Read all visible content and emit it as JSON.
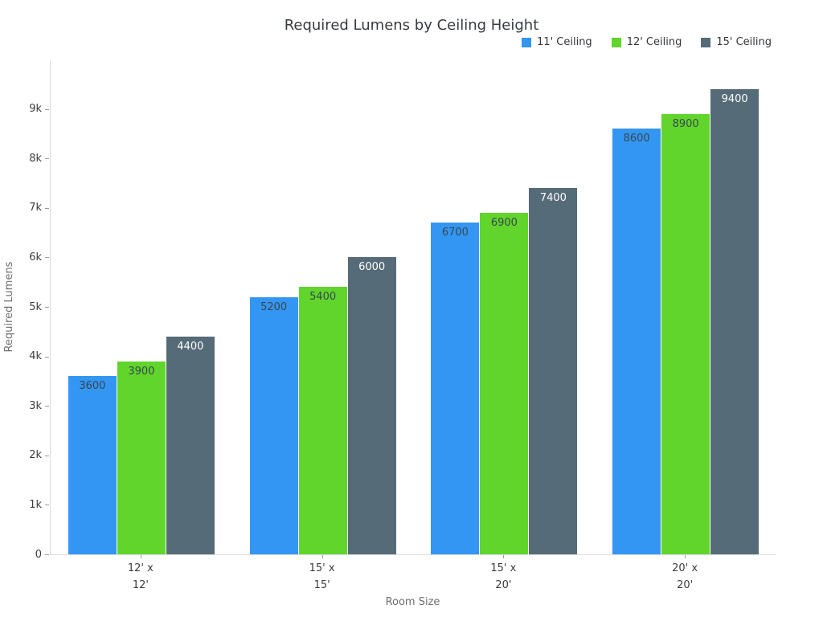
{
  "chart_data": {
    "type": "bar",
    "title": "Required Lumens by Ceiling Height",
    "xlabel": "Room Size",
    "ylabel": "Required Lumens",
    "categories": [
      "12' x 12'",
      "15' x 15'",
      "15' x 20'",
      "20' x 20'"
    ],
    "series": [
      {
        "name": "11' Ceiling",
        "color": "#3396F2",
        "values": [
          3600,
          5200,
          6700,
          8600
        ]
      },
      {
        "name": "12' Ceiling",
        "color": "#61D52C",
        "values": [
          3900,
          5400,
          6900,
          8900
        ]
      },
      {
        "name": "15' Ceiling",
        "color": "#566B78",
        "values": [
          4400,
          6000,
          7400,
          9400
        ]
      }
    ],
    "ylim": [
      0,
      10000
    ],
    "ytick_step": 1000,
    "ytick_labels": [
      "0",
      "1k",
      "2k",
      "3k",
      "4k",
      "5k",
      "6k",
      "7k",
      "8k",
      "9k"
    ],
    "bar_value_labels": true,
    "bar_label_dark_color": "#37474F",
    "bar_label_light_color": "#FFFFFF",
    "legend_position": "top-right",
    "grid": false
  }
}
